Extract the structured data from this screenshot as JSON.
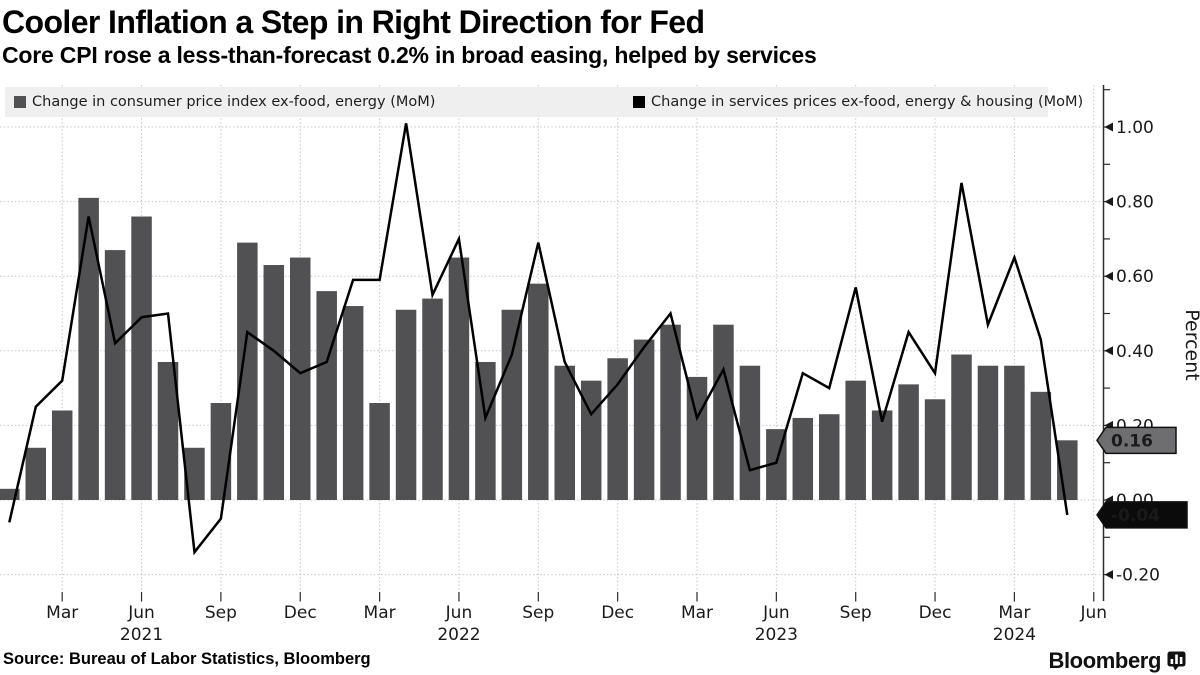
{
  "header": {
    "title": "Cooler Inflation a Step in Right Direction for Fed",
    "subtitle": "Core CPI rose a less-than-forecast 0.2% in broad easing, helped by services"
  },
  "legend": {
    "background": "#efefef",
    "items": [
      {
        "label": "Change in consumer price index ex-food, energy (MoM)",
        "color": "#515154"
      },
      {
        "label": "Change in services prices ex-food, energy & housing (MoM)",
        "color": "#000000"
      }
    ]
  },
  "source": "Source: Bureau of Labor Statistics, Bloomberg",
  "branding": {
    "name": "Bloomberg",
    "icon": "bloomberg-chart-bubble-icon"
  },
  "chart_data": {
    "type": "combo",
    "x": [
      "Jan 2021",
      "Feb 2021",
      "Mar 2021",
      "Apr 2021",
      "May 2021",
      "Jun 2021",
      "Jul 2021",
      "Aug 2021",
      "Sep 2021",
      "Oct 2021",
      "Nov 2021",
      "Dec 2021",
      "Jan 2022",
      "Feb 2022",
      "Mar 2022",
      "Apr 2022",
      "May 2022",
      "Jun 2022",
      "Jul 2022",
      "Aug 2022",
      "Sep 2022",
      "Oct 2022",
      "Nov 2022",
      "Dec 2022",
      "Jan 2023",
      "Feb 2023",
      "Mar 2023",
      "Apr 2023",
      "May 2023",
      "Jun 2023",
      "Jul 2023",
      "Aug 2023",
      "Sep 2023",
      "Oct 2023",
      "Nov 2023",
      "Dec 2023",
      "Jan 2024",
      "Feb 2024",
      "Mar 2024",
      "Apr 2024",
      "May 2024"
    ],
    "series": [
      {
        "name": "Change in consumer price index ex-food, energy (MoM)",
        "type": "bar",
        "color": "#515154",
        "values": [
          0.03,
          0.14,
          0.24,
          0.81,
          0.67,
          0.76,
          0.37,
          0.14,
          0.26,
          0.69,
          0.63,
          0.65,
          0.56,
          0.52,
          0.26,
          0.51,
          0.54,
          0.65,
          0.37,
          0.51,
          0.58,
          0.36,
          0.32,
          0.38,
          0.43,
          0.47,
          0.33,
          0.47,
          0.36,
          0.19,
          0.22,
          0.23,
          0.32,
          0.24,
          0.31,
          0.27,
          0.39,
          0.36,
          0.36,
          0.29,
          0.16
        ]
      },
      {
        "name": "Change in services prices ex-food, energy & housing (MoM)",
        "type": "line",
        "color": "#000000",
        "values": [
          -0.06,
          0.25,
          0.32,
          0.76,
          0.42,
          0.49,
          0.5,
          -0.14,
          -0.05,
          0.45,
          0.4,
          0.34,
          0.37,
          0.59,
          0.59,
          1.01,
          0.55,
          0.7,
          0.22,
          0.39,
          0.69,
          0.37,
          0.23,
          0.31,
          0.41,
          0.5,
          0.22,
          0.35,
          0.08,
          0.1,
          0.34,
          0.3,
          0.57,
          0.21,
          0.45,
          0.34,
          0.85,
          0.47,
          0.65,
          0.43,
          -0.04
        ]
      }
    ],
    "title": "Cooler Inflation a Step in Right Direction for Fed",
    "xlabel": "",
    "ylabel": "Percent",
    "ylim": [
      -0.27,
      1.12
    ],
    "grid": true,
    "legend_position": "top",
    "yticks": [
      -0.2,
      0.0,
      0.2,
      0.4,
      0.6,
      0.8,
      1.0
    ],
    "ytick_labels": [
      "-0.20",
      "0.00",
      "0.20",
      "0.40",
      "0.60",
      "0.80",
      "1.00"
    ],
    "xticks": [
      {
        "label": "Mar",
        "index": 2
      },
      {
        "label": "Jun",
        "index": 5,
        "year": "2021"
      },
      {
        "label": "Sep",
        "index": 8
      },
      {
        "label": "Dec",
        "index": 11
      },
      {
        "label": "Mar",
        "index": 14
      },
      {
        "label": "Jun",
        "index": 17,
        "year": "2022"
      },
      {
        "label": "Sep",
        "index": 20
      },
      {
        "label": "Dec",
        "index": 23
      },
      {
        "label": "Mar",
        "index": 26
      },
      {
        "label": "Jun",
        "index": 29,
        "year": "2023"
      },
      {
        "label": "Sep",
        "index": 32
      },
      {
        "label": "Dec",
        "index": 35
      },
      {
        "label": "Mar",
        "index": 38,
        "year": "2024"
      },
      {
        "label": "Jun",
        "index": 41
      }
    ],
    "end_labels": [
      {
        "text": "0.16",
        "value": 0.16,
        "fill": "#6e6e71",
        "stroke": "#111111",
        "text_color": "#ffffff"
      },
      {
        "text": "-0.04",
        "value": -0.04,
        "fill": "#0b0b0b",
        "stroke": "#111111",
        "text_color": "#ffffff"
      }
    ]
  }
}
